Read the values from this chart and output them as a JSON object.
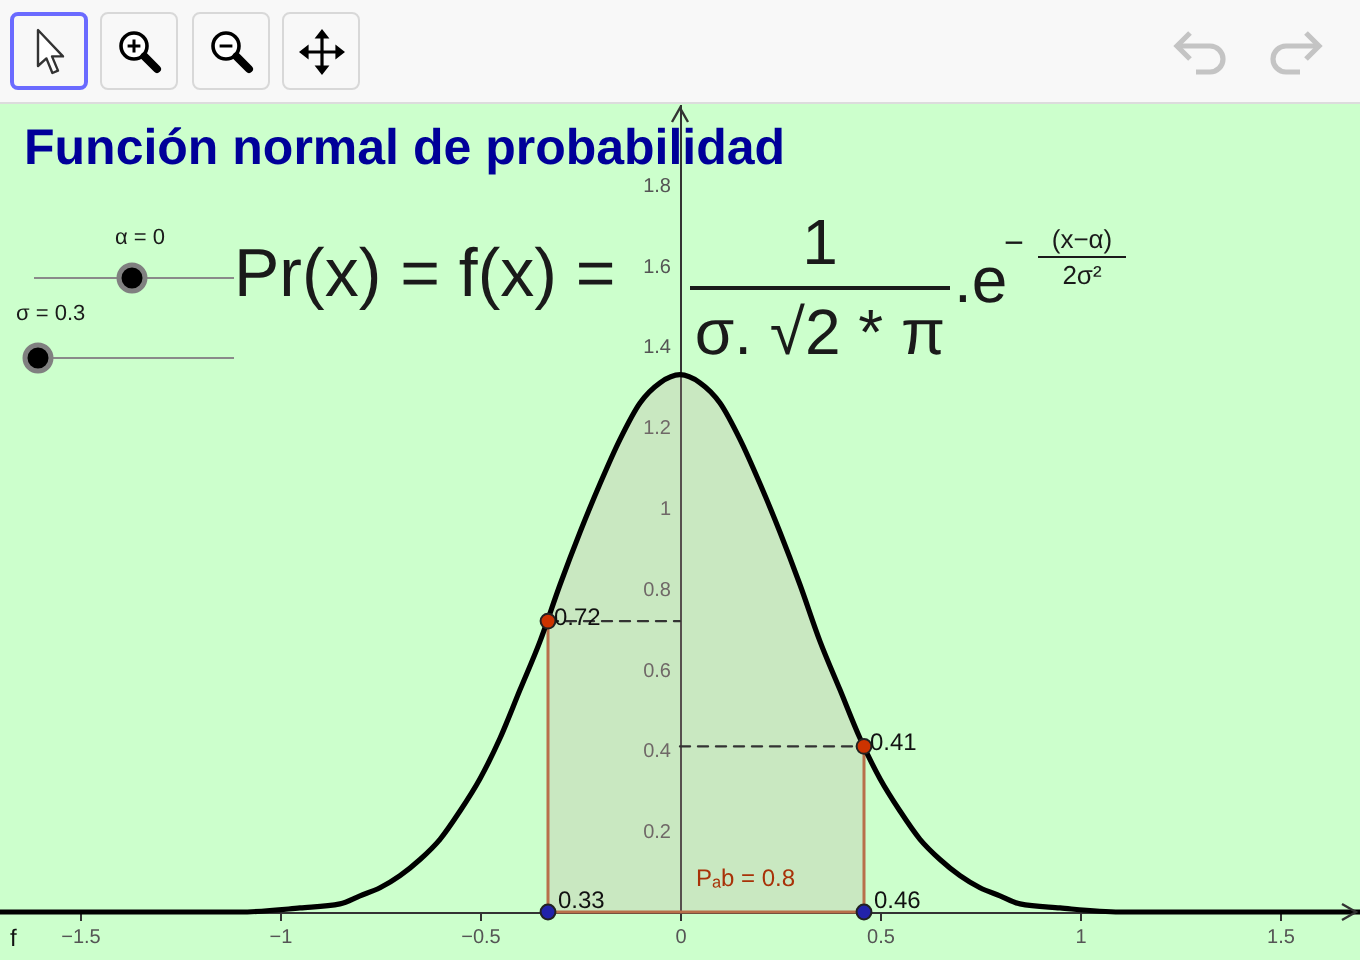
{
  "chart_data": {
    "type": "line",
    "title": "Función normal de probabilidad",
    "xlim": [
      -1.7,
      1.7
    ],
    "ylim": [
      0,
      2.0
    ],
    "xticks": [
      -1.5,
      -1,
      -0.5,
      0,
      0.5,
      1,
      1.5
    ],
    "yticks": [
      0.2,
      0.4,
      0.6,
      0.8,
      1,
      1.2,
      1.4,
      1.6,
      1.8
    ],
    "series": [
      {
        "type": "area",
        "color": "#c9e8c1",
        "x": [
          -0.33,
          -0.3,
          -0.25,
          -0.2,
          -0.15,
          -0.1,
          -0.05,
          0,
          0.05,
          0.1,
          0.15,
          0.2,
          0.25,
          0.3,
          0.35,
          0.4,
          0.45,
          0.46
        ],
        "values": [
          0.72,
          0.81,
          0.94,
          1.06,
          1.17,
          1.26,
          1.31,
          1.33,
          1.31,
          1.26,
          1.17,
          1.06,
          0.94,
          0.81,
          0.67,
          0.55,
          0.43,
          0.41
        ]
      },
      {
        "color": "#333333",
        "line_style": "dashed",
        "x": [
          -0.33,
          0
        ],
        "values": [
          0.72,
          0.72
        ]
      },
      {
        "color": "#333333",
        "line_style": "dashed",
        "x": [
          0,
          0.46
        ],
        "values": [
          0.41,
          0.41
        ]
      },
      {
        "name": "f",
        "color": "#000000",
        "x": [
          -1.7,
          -1.3,
          -1.1,
          -0.95,
          -0.85,
          -0.8,
          -0.75,
          -0.7,
          -0.65,
          -0.6,
          -0.55,
          -0.5,
          -0.45,
          -0.4,
          -0.35,
          -0.3,
          -0.25,
          -0.2,
          -0.15,
          -0.1,
          -0.05,
          0,
          0.05,
          0.1,
          0.15,
          0.2,
          0.25,
          0.3,
          0.35,
          0.4,
          0.45,
          0.5,
          0.55,
          0.6,
          0.65,
          0.7,
          0.75,
          0.8,
          0.85,
          0.95,
          1.1,
          1.3,
          1.7
        ],
        "values": [
          0,
          0,
          0,
          0.01,
          0.02,
          0.04,
          0.06,
          0.09,
          0.13,
          0.18,
          0.25,
          0.33,
          0.43,
          0.55,
          0.67,
          0.81,
          0.94,
          1.06,
          1.17,
          1.26,
          1.31,
          1.33,
          1.31,
          1.26,
          1.17,
          1.06,
          0.94,
          0.81,
          0.67,
          0.55,
          0.43,
          0.33,
          0.25,
          0.18,
          0.13,
          0.09,
          0.06,
          0.04,
          0.02,
          0.01,
          0,
          0,
          0
        ]
      },
      {
        "type": "scatter",
        "marker": "circle",
        "color": "#cc3300",
        "x": [
          -0.33,
          0.46
        ],
        "values": [
          0.72,
          0.41
        ],
        "value_labels": [
          "0.72",
          "0.41"
        ]
      },
      {
        "type": "scatter",
        "marker": "circle",
        "color": "#2222aa",
        "x": [
          -0.33,
          0.46
        ],
        "values": [
          0,
          0
        ]
      }
    ],
    "annotations": [
      "α = 0",
      "σ = 0.3",
      "Pr(x) = f(x) =",
      "1",
      "σ. √2 * π",
      ".e",
      "−",
      "(x−α)",
      "2σ²",
      "Pₐb = 0.8",
      {
        "text": "0.33",
        "x": -0.33,
        "y": 0
      },
      {
        "text": "0.46",
        "x": 0.46,
        "y": 0
      }
    ]
  }
}
